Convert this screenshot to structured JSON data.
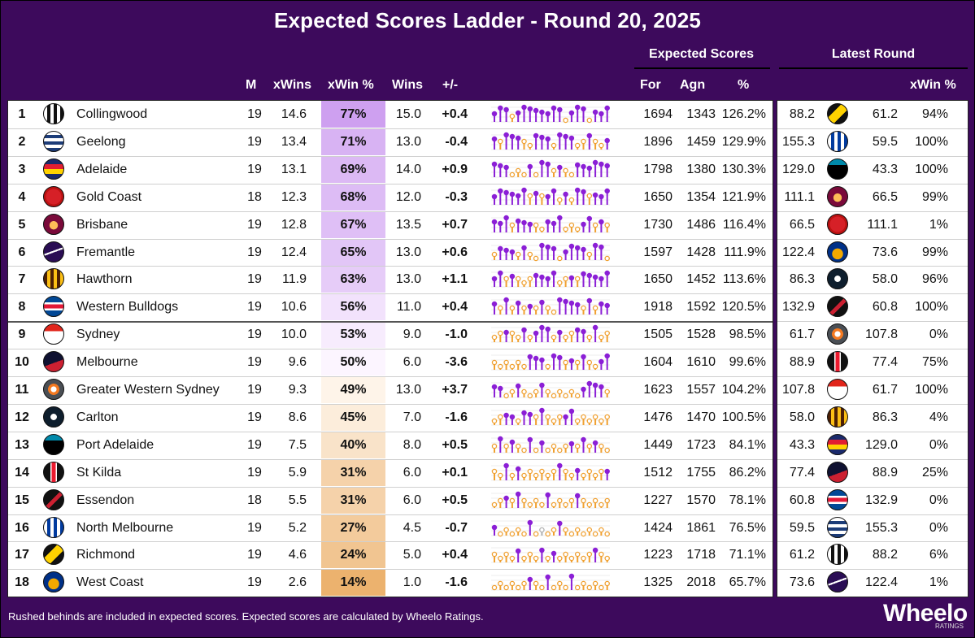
{
  "title": "Expected Scores Ladder - Round 20, 2025",
  "group_headers": {
    "expected": "Expected Scores",
    "latest": "Latest Round"
  },
  "columns": {
    "m": "M",
    "xwins": "xWins",
    "xwinpct": "xWin %",
    "wins": "Wins",
    "diff": "+/-",
    "for": "For",
    "agn": "Agn",
    "pct": "%",
    "latest_xwin": "xWin %"
  },
  "footer": "Rushed behinds are included in expected scores. Expected scores are calculated by Wheelo Ratings.",
  "brand": {
    "name": "Wheelo",
    "sub": "RATINGS"
  },
  "colors": {
    "win": "#8b1fd6",
    "loss": "#f0a030",
    "draw": "#b0b0b0",
    "background": "#3d0a5c"
  },
  "chart_data": {
    "type": "table",
    "title": "Expected Scores Ladder - Round 20, 2025",
    "rows": [
      {
        "rank": "1",
        "team": "Collingwood",
        "logo": "collingwood-logo",
        "m": "19",
        "xwins": "14.6",
        "xwinpct": "77%",
        "wins": "15.0",
        "diff": "+0.4",
        "for": "1694",
        "agn": "1343",
        "pct": "126.2%",
        "latest_for": "88.2",
        "opp_logo": "richmond-logo",
        "latest_agn": "61.2",
        "latest_xwin": "94%",
        "form": "WWWLWWWWWWWWLWWWLWWW"
      },
      {
        "rank": "2",
        "team": "Geelong",
        "logo": "geelong-logo",
        "m": "19",
        "xwins": "13.4",
        "xwinpct": "71%",
        "wins": "13.0",
        "diff": "-0.4",
        "for": "1896",
        "agn": "1459",
        "pct": "129.9%",
        "latest_for": "155.3",
        "opp_logo": "north-melbourne-logo",
        "latest_agn": "59.5",
        "latest_xwin": "100%",
        "form": "WLWWWLLWWWLWWWLLWLLW"
      },
      {
        "rank": "3",
        "team": "Adelaide",
        "logo": "adelaide-logo",
        "m": "19",
        "xwins": "13.1",
        "xwinpct": "69%",
        "wins": "14.0",
        "diff": "+0.9",
        "for": "1798",
        "agn": "1380",
        "pct": "130.3%",
        "latest_for": "129.0",
        "opp_logo": "port-adelaide-logo",
        "latest_agn": "43.3",
        "latest_xwin": "100%",
        "form": "WWWLLLWLWWLWLLWWWWWW"
      },
      {
        "rank": "4",
        "team": "Gold Coast",
        "logo": "gold-coast-logo",
        "m": "18",
        "xwins": "12.3",
        "xwinpct": "68%",
        "wins": "12.0",
        "diff": "-0.3",
        "for": "1650",
        "agn": "1354",
        "pct": "121.9%",
        "latest_for": "111.1",
        "opp_logo": "brisbane-logo",
        "latest_agn": "66.5",
        "latest_xwin": "99%",
        "form": "WWWWWWLWLWWLWLWWLWWW"
      },
      {
        "rank": "5",
        "team": "Brisbane",
        "logo": "brisbane-logo",
        "m": "19",
        "xwins": "12.8",
        "xwinpct": "67%",
        "wins": "13.5",
        "diff": "+0.7",
        "for": "1730",
        "agn": "1486",
        "pct": "116.4%",
        "latest_for": "66.5",
        "opp_logo": "gold-coast-logo",
        "latest_agn": "111.1",
        "latest_xwin": "1%",
        "form": "WWWLWWWLLWWWLLLWWLWL"
      },
      {
        "rank": "6",
        "team": "Fremantle",
        "logo": "fremantle-logo",
        "m": "19",
        "xwins": "12.4",
        "xwinpct": "65%",
        "wins": "13.0",
        "diff": "+0.6",
        "for": "1597",
        "agn": "1428",
        "pct": "111.9%",
        "latest_for": "122.4",
        "opp_logo": "west-coast-logo",
        "latest_agn": "73.6",
        "latest_xwin": "99%",
        "form": "LWWWLWLLWWWLWWWWLWWL"
      },
      {
        "rank": "7",
        "team": "Hawthorn",
        "logo": "hawthorn-logo",
        "m": "19",
        "xwins": "11.9",
        "xwinpct": "63%",
        "wins": "13.0",
        "diff": "+1.1",
        "for": "1650",
        "agn": "1452",
        "pct": "113.6%",
        "latest_for": "86.3",
        "opp_logo": "carlton-logo",
        "latest_agn": "58.0",
        "latest_xwin": "96%",
        "form": "WWLWLLLWWWWLLWLWWWWW"
      },
      {
        "rank": "8",
        "team": "Western Bulldogs",
        "logo": "western-bulldogs-logo",
        "m": "19",
        "xwins": "10.6",
        "xwinpct": "56%",
        "wins": "11.0",
        "diff": "+0.4",
        "for": "1918",
        "agn": "1592",
        "pct": "120.5%",
        "latest_for": "132.9",
        "opp_logo": "essendon-logo",
        "latest_agn": "60.8",
        "latest_xwin": "100%",
        "form": "WLWLWLWLWLLWWWWLWLWW"
      },
      {
        "rank": "9",
        "team": "Sydney",
        "logo": "sydney-logo",
        "m": "19",
        "xwins": "10.0",
        "xwinpct": "53%",
        "wins": "9.0",
        "diff": "-1.0",
        "for": "1505",
        "agn": "1528",
        "pct": "98.5%",
        "latest_for": "61.7",
        "opp_logo": "gws-logo",
        "latest_agn": "107.8",
        "latest_xwin": "0%",
        "form": "LLWLLWLWWWLWLLWWLWLL"
      },
      {
        "rank": "10",
        "team": "Melbourne",
        "logo": "melbourne-logo",
        "m": "19",
        "xwins": "9.6",
        "xwinpct": "50%",
        "wins": "6.0",
        "diff": "-3.6",
        "for": "1604",
        "agn": "1610",
        "pct": "99.6%",
        "latest_for": "88.9",
        "opp_logo": "st-kilda-logo",
        "latest_agn": "77.4",
        "latest_xwin": "75%",
        "form": "LLLLLLWWWLWWLWLWLLWW"
      },
      {
        "rank": "11",
        "team": "Greater Western Sydney",
        "logo": "gws-logo",
        "m": "19",
        "xwins": "9.3",
        "xwinpct": "49%",
        "wins": "13.0",
        "diff": "+3.7",
        "for": "1623",
        "agn": "1557",
        "pct": "104.2%",
        "latest_for": "107.8",
        "opp_logo": "sydney-logo",
        "latest_agn": "61.7",
        "latest_xwin": "100%",
        "form": "WWLLWLLLWLLLLLLWWWWL"
      },
      {
        "rank": "12",
        "team": "Carlton",
        "logo": "carlton-logo",
        "m": "19",
        "xwins": "8.6",
        "xwinpct": "45%",
        "wins": "7.0",
        "diff": "-1.6",
        "for": "1476",
        "agn": "1470",
        "pct": "100.5%",
        "latest_for": "58.0",
        "opp_logo": "hawthorn-logo",
        "latest_agn": "86.3",
        "latest_xwin": "4%",
        "form": "LLWWLWWLWLLLWWLLLLLL"
      },
      {
        "rank": "13",
        "team": "Port Adelaide",
        "logo": "port-adelaide-logo",
        "m": "19",
        "xwins": "7.5",
        "xwinpct": "40%",
        "wins": "8.0",
        "diff": "+0.5",
        "for": "1449",
        "agn": "1723",
        "pct": "84.1%",
        "latest_for": "43.3",
        "opp_logo": "adelaide-logo",
        "latest_agn": "129.0",
        "latest_xwin": "0%",
        "form": "LWLWLLWLWLLLLWLWLWLL"
      },
      {
        "rank": "14",
        "team": "St Kilda",
        "logo": "st-kilda-logo",
        "m": "19",
        "xwins": "5.9",
        "xwinpct": "31%",
        "wins": "6.0",
        "diff": "+0.1",
        "for": "1512",
        "agn": "1755",
        "pct": "86.2%",
        "latest_for": "77.4",
        "opp_logo": "melbourne-logo",
        "latest_agn": "88.9",
        "latest_xwin": "25%",
        "form": "LLWLWLLLLLLWLLWLLLLW"
      },
      {
        "rank": "15",
        "team": "Essendon",
        "logo": "essendon-logo",
        "m": "18",
        "xwins": "5.5",
        "xwinpct": "31%",
        "wins": "6.0",
        "diff": "+0.5",
        "for": "1227",
        "agn": "1570",
        "pct": "78.1%",
        "latest_for": "60.8",
        "opp_logo": "western-bulldogs-logo",
        "latest_agn": "132.9",
        "latest_xwin": "0%",
        "form": "LLWLWLLLLWLLLLWLLLLL"
      },
      {
        "rank": "16",
        "team": "North Melbourne",
        "logo": "north-melbourne-logo",
        "m": "19",
        "xwins": "5.2",
        "xwinpct": "27%",
        "wins": "4.5",
        "diff": "-0.7",
        "for": "1424",
        "agn": "1861",
        "pct": "76.5%",
        "latest_for": "59.5",
        "opp_logo": "geelong-logo",
        "latest_agn": "155.3",
        "latest_xwin": "0%",
        "form": "WLLLLLWLDLLWLLLLLLLL"
      },
      {
        "rank": "17",
        "team": "Richmond",
        "logo": "richmond-logo",
        "m": "19",
        "xwins": "4.6",
        "xwinpct": "24%",
        "wins": "5.0",
        "diff": "+0.4",
        "for": "1223",
        "agn": "1718",
        "pct": "71.1%",
        "latest_for": "61.2",
        "opp_logo": "collingwood-logo",
        "latest_agn": "88.2",
        "latest_xwin": "6%",
        "form": "LLLLWLLLWLWLLLLLLWLL"
      },
      {
        "rank": "18",
        "team": "West Coast",
        "logo": "west-coast-logo",
        "m": "19",
        "xwins": "2.6",
        "xwinpct": "14%",
        "wins": "1.0",
        "diff": "-1.6",
        "for": "1325",
        "agn": "2018",
        "pct": "65.7%",
        "latest_for": "73.6",
        "opp_logo": "fremantle-logo",
        "latest_agn": "122.4",
        "latest_xwin": "1%",
        "form": "LLLLLLWLLWLLLWLLLLLL"
      }
    ]
  }
}
